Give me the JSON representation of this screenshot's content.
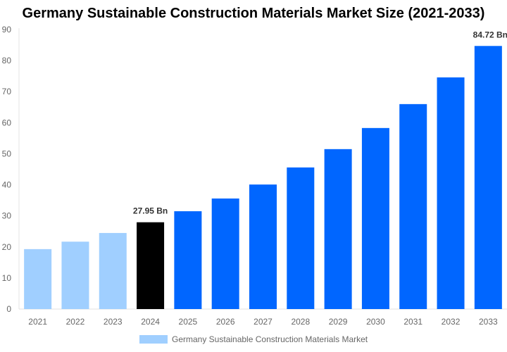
{
  "chart_data": {
    "type": "bar",
    "title": "Germany Sustainable Construction Materials Market Size (2021-2033)",
    "categories": [
      "2021",
      "2022",
      "2023",
      "2024",
      "2025",
      "2026",
      "2027",
      "2028",
      "2029",
      "2030",
      "2031",
      "2032",
      "2033"
    ],
    "series": [
      {
        "name": "Germany Sustainable Construction Materials Market",
        "values": [
          19.3,
          21.7,
          24.5,
          27.95,
          31.5,
          35.6,
          40.1,
          45.6,
          51.5,
          58.3,
          66.0,
          74.6,
          84.72
        ]
      }
    ],
    "bar_colors": [
      "#a0cfff",
      "#a0cfff",
      "#a0cfff",
      "#000000",
      "#0066ff",
      "#0066ff",
      "#0066ff",
      "#0066ff",
      "#0066ff",
      "#0066ff",
      "#0066ff",
      "#0066ff",
      "#0066ff"
    ],
    "data_labels": [
      {
        "category": "2024",
        "text": "27.95 Bn"
      },
      {
        "category": "2033",
        "text": "84.72 Bn"
      }
    ],
    "yticks": [
      0,
      10,
      20,
      30,
      40,
      50,
      60,
      70,
      80,
      90
    ],
    "ylim": [
      0,
      90
    ],
    "xlabel": "",
    "ylabel": "",
    "grid": false,
    "legend": "bottom",
    "legend_color": "#a0cfff"
  }
}
